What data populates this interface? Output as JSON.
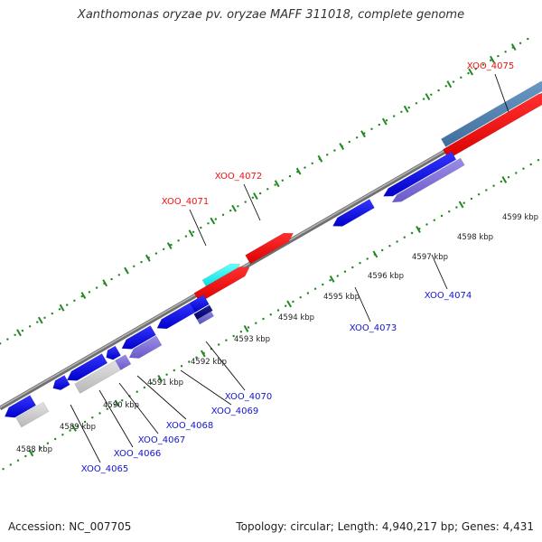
{
  "title": "Xanthomonas oryzae pv. oryzae MAFF 311018, complete genome",
  "footer": {
    "accession": "Accession: NC_007705",
    "summary": "Topology: circular; Length: 4,940,217 bp; Genes: 4,431"
  },
  "colors": {
    "red_label": "#ee1111",
    "blue_label": "#1515cc",
    "tick_green": "#228822",
    "backbone": "#8a8a8a"
  },
  "scale_labels": [
    "4588 kbp",
    "4589 kbp",
    "4590 kbp",
    "4591 kbp",
    "4592 kbp",
    "4593 kbp",
    "4594 kbp",
    "4595 kbp",
    "4596 kbp",
    "4597 kbp",
    "4598 kbp",
    "4599 kbp"
  ],
  "gene_labels": [
    {
      "text": "XOO_4075",
      "strand": "forward"
    },
    {
      "text": "XOO_4072",
      "strand": "forward"
    },
    {
      "text": "XOO_4071",
      "strand": "forward"
    },
    {
      "text": "XOO_4074",
      "strand": "reverse"
    },
    {
      "text": "XOO_4073",
      "strand": "reverse"
    },
    {
      "text": "XOO_4070",
      "strand": "reverse"
    },
    {
      "text": "XOO_4069",
      "strand": "reverse"
    },
    {
      "text": "XOO_4068",
      "strand": "reverse"
    },
    {
      "text": "XOO_4067",
      "strand": "reverse"
    },
    {
      "text": "XOO_4066",
      "strand": "reverse"
    },
    {
      "text": "XOO_4065",
      "strand": "reverse"
    }
  ]
}
